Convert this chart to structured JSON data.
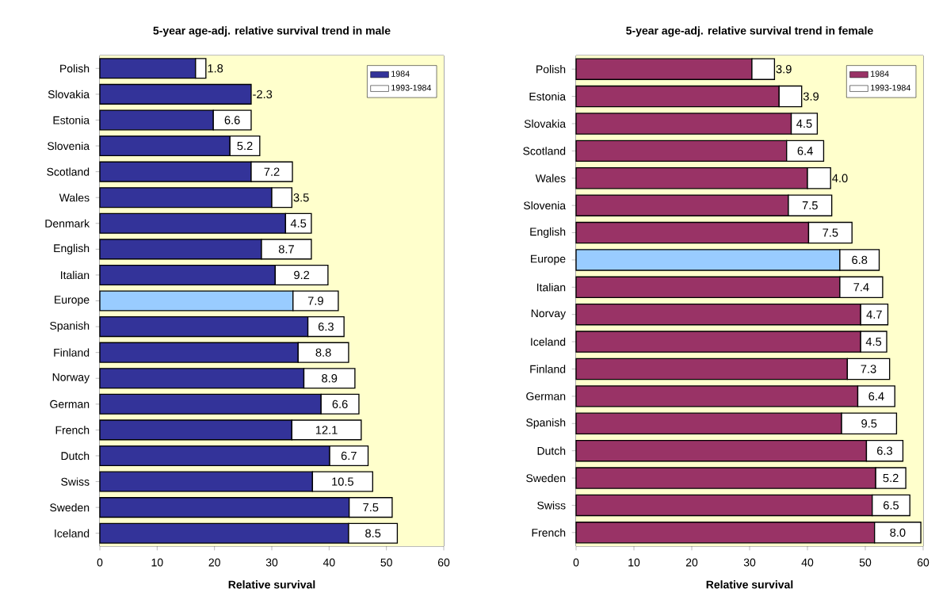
{
  "chart_data": [
    {
      "type": "bar",
      "orientation": "horizontal",
      "stacked": true,
      "title": "5-year age-adj. relative survival trend in male",
      "xlabel": "Relative survival",
      "categories": [
        "Polish",
        "Slovakia",
        "Estonia",
        "Slovenia",
        "Scotland",
        "Wales",
        "Denmark",
        "English",
        "Italian",
        "Europe",
        "Spanish",
        "Finland",
        "Norway",
        "German",
        "French",
        "Dutch",
        "Swiss",
        "Sweden",
        "Iceland"
      ],
      "series": [
        {
          "name": "1984",
          "color": "#333399",
          "colors": [
            "#333399",
            "#333399",
            "#333399",
            "#333399",
            "#333399",
            "#333399",
            "#333399",
            "#333399",
            "#333399",
            "#99ccff",
            "#333399",
            "#333399",
            "#333399",
            "#333399",
            "#333399",
            "#333399",
            "#333399",
            "#333399",
            "#333399"
          ],
          "values": [
            16.7,
            26.4,
            19.8,
            22.7,
            26.4,
            30.0,
            32.4,
            28.2,
            30.6,
            33.7,
            36.3,
            34.6,
            35.6,
            38.6,
            33.5,
            40.1,
            37.1,
            43.5,
            43.4
          ]
        },
        {
          "name": "1993-1984",
          "color": "#ffffff",
          "values": [
            1.8,
            null,
            6.6,
            5.2,
            7.2,
            3.5,
            4.5,
            8.7,
            9.2,
            7.9,
            6.3,
            8.8,
            8.9,
            6.6,
            12.1,
            6.7,
            10.5,
            7.5,
            8.5
          ],
          "value_labels": [
            "1.8",
            null,
            "6.6",
            "5.2",
            "7.2",
            "3.5",
            "4.5",
            "8.7",
            "9.2",
            "7.9",
            "6.3",
            "8.8",
            "8.9",
            "6.6",
            "12.1",
            "6.7",
            "10.5",
            "7.5",
            "8.5"
          ]
        }
      ],
      "annotations": [
        {
          "text": "-2.3",
          "x": 26.4,
          "y": "Slovakia"
        }
      ],
      "bands": [
        {
          "axis": "x",
          "from": 0,
          "to": 60,
          "color": "#ffffcc"
        }
      ],
      "xlim": [
        0,
        60
      ],
      "xticks": [
        0,
        10,
        20,
        30,
        40,
        50,
        60
      ],
      "grid": "x",
      "legend": "top right"
    },
    {
      "type": "bar",
      "orientation": "horizontal",
      "stacked": true,
      "title": "5-year age-adj. relative survival trend in female",
      "xlabel": "Relative survival",
      "categories": [
        "Polish",
        "Estonia",
        "Slovakia",
        "Scotland",
        "Wales",
        "Slovenia",
        "English",
        "Europe",
        "Italian",
        "Norvay",
        "Iceland",
        "Finland",
        "German",
        "Spanish",
        "Dutch",
        "Sweden",
        "Swiss",
        "French"
      ],
      "series": [
        {
          "name": "1984",
          "color": "#993366",
          "colors": [
            "#993366",
            "#993366",
            "#993366",
            "#993366",
            "#993366",
            "#993366",
            "#993366",
            "#99ccff",
            "#993366",
            "#993366",
            "#993366",
            "#993366",
            "#993366",
            "#993366",
            "#993366",
            "#993366",
            "#993366",
            "#993366"
          ],
          "values": [
            30.4,
            35.1,
            37.2,
            36.4,
            40.0,
            36.7,
            40.2,
            45.6,
            45.6,
            49.2,
            49.2,
            46.9,
            48.7,
            45.9,
            50.2,
            51.8,
            51.2,
            51.6
          ]
        },
        {
          "name": "1993-1984",
          "color": "#ffffff",
          "values": [
            3.9,
            3.9,
            4.5,
            6.4,
            4.0,
            7.5,
            7.5,
            6.8,
            7.4,
            4.7,
            4.5,
            7.3,
            6.4,
            9.5,
            6.3,
            5.2,
            6.5,
            8.0
          ],
          "value_labels": [
            "3.9",
            "3.9",
            "4.5",
            "6.4",
            "4.0",
            "7.5",
            "7.5",
            "6.8",
            "7.4",
            "4.7",
            "4.5",
            "7.3",
            "6.4",
            "9.5",
            "6.3",
            "5.2",
            "6.5",
            "8.0"
          ]
        }
      ],
      "bands": [
        {
          "axis": "x",
          "from": 0,
          "to": 60,
          "color": "#ffffcc"
        }
      ],
      "xlim": [
        0,
        60
      ],
      "xticks": [
        0,
        10,
        20,
        30,
        40,
        50,
        60
      ],
      "grid": "x",
      "legend": "top right"
    }
  ]
}
